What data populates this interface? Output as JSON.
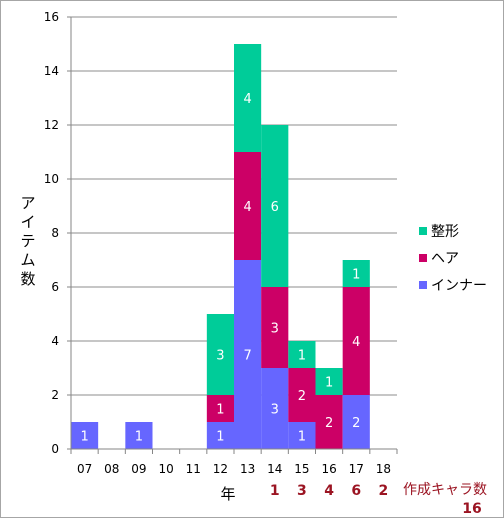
{
  "chart_data": {
    "type": "bar",
    "stacked": true,
    "categories": [
      "07",
      "08",
      "09",
      "10",
      "11",
      "12",
      "13",
      "14",
      "15",
      "16",
      "17",
      "18"
    ],
    "series": [
      {
        "name": "インナー",
        "color": "#6666ff",
        "values": [
          1,
          0,
          1,
          0,
          0,
          1,
          7,
          3,
          1,
          0,
          2,
          0
        ]
      },
      {
        "name": "ヘア",
        "color": "#cc0066",
        "values": [
          0,
          0,
          0,
          0,
          0,
          1,
          4,
          3,
          2,
          2,
          4,
          0
        ]
      },
      {
        "name": "整形",
        "color": "#00cc99",
        "values": [
          0,
          0,
          0,
          0,
          0,
          3,
          4,
          6,
          1,
          1,
          1,
          0
        ]
      }
    ],
    "y_ticks": [
      "0",
      "2",
      "4",
      "6",
      "8",
      "10",
      "12",
      "14",
      "16"
    ],
    "ylim": [
      0,
      16
    ],
    "ylabel_chars": [
      "ア",
      "イ",
      "テ",
      "ム",
      "数"
    ],
    "xlabel": "年",
    "grid": true,
    "legend_position": "right",
    "legend_order": [
      "整形",
      "ヘア",
      "インナー"
    ],
    "character_counts": {
      "title": "作成キャラ数",
      "total": "16",
      "values": [
        {
          "category": "14",
          "count": "1"
        },
        {
          "category": "15",
          "count": "3"
        },
        {
          "category": "16",
          "count": "4"
        },
        {
          "category": "17",
          "count": "6"
        },
        {
          "category": "18",
          "count": "2"
        }
      ]
    }
  }
}
